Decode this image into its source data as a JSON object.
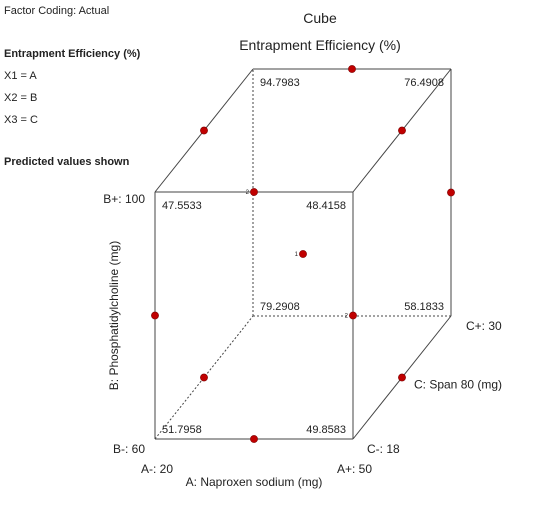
{
  "side_panel": {
    "factor_coding": "Factor Coding: Actual",
    "response": "Entrapment Efficiency (%)",
    "factors": [
      "X1 = A",
      "X2 = B",
      "X3 = C"
    ],
    "note": "Predicted values shown"
  },
  "chart_data": {
    "type": "cube",
    "title": "Cube",
    "subtitle": "Entrapment Efficiency (%)",
    "axes": {
      "A": {
        "label": "A: Naproxen sodium (mg)",
        "low_label": "A-: 20",
        "high_label": "A+: 50",
        "low": 20,
        "high": 50
      },
      "B": {
        "label": "B: Phosphatidylcholine (mg)",
        "low_label": "B-: 60",
        "high_label": "B+: 100",
        "low": 60,
        "high": 100
      },
      "C": {
        "label": "C: Span 80 (mg)",
        "low_label": "C-: 18",
        "high_label": "C+: 30",
        "low": 18,
        "high": 30
      }
    },
    "corner_values": [
      {
        "A": -1,
        "B": -1,
        "C": -1,
        "value": "51.7958"
      },
      {
        "A": 1,
        "B": -1,
        "C": -1,
        "value": "49.8583"
      },
      {
        "A": -1,
        "B": 1,
        "C": -1,
        "value": "47.5533"
      },
      {
        "A": 1,
        "B": 1,
        "C": -1,
        "value": "48.4158"
      },
      {
        "A": -1,
        "B": -1,
        "C": 1,
        "value": "79.2908"
      },
      {
        "A": 1,
        "B": -1,
        "C": 1,
        "value": "58.1833"
      },
      {
        "A": -1,
        "B": 1,
        "C": 1,
        "value": "94.7983"
      },
      {
        "A": 1,
        "B": 1,
        "C": 1,
        "value": "76.4908"
      }
    ],
    "design_points": [
      {
        "A": 0,
        "B": 1,
        "C": 1,
        "count": null
      },
      {
        "A": 0,
        "B": 1,
        "C": -1,
        "count": "2"
      },
      {
        "A": -1,
        "B": 1,
        "C": 0,
        "count": null
      },
      {
        "A": 1,
        "B": 1,
        "C": 0,
        "count": null
      },
      {
        "A": 1,
        "B": 0,
        "C": 1,
        "count": null
      },
      {
        "A": 0,
        "B": 0,
        "C": 0,
        "count": "1"
      },
      {
        "A": -1,
        "B": 0,
        "C": -1,
        "count": null
      },
      {
        "A": 1,
        "B": 0,
        "C": -1,
        "count": "2"
      },
      {
        "A": -1,
        "B": -1,
        "C": 0,
        "count": null
      },
      {
        "A": 1,
        "B": -1,
        "C": 0,
        "count": null
      },
      {
        "A": 0,
        "B": -1,
        "C": -1,
        "count": null
      }
    ],
    "point_color": "#c00000",
    "line_color": "#444444"
  }
}
